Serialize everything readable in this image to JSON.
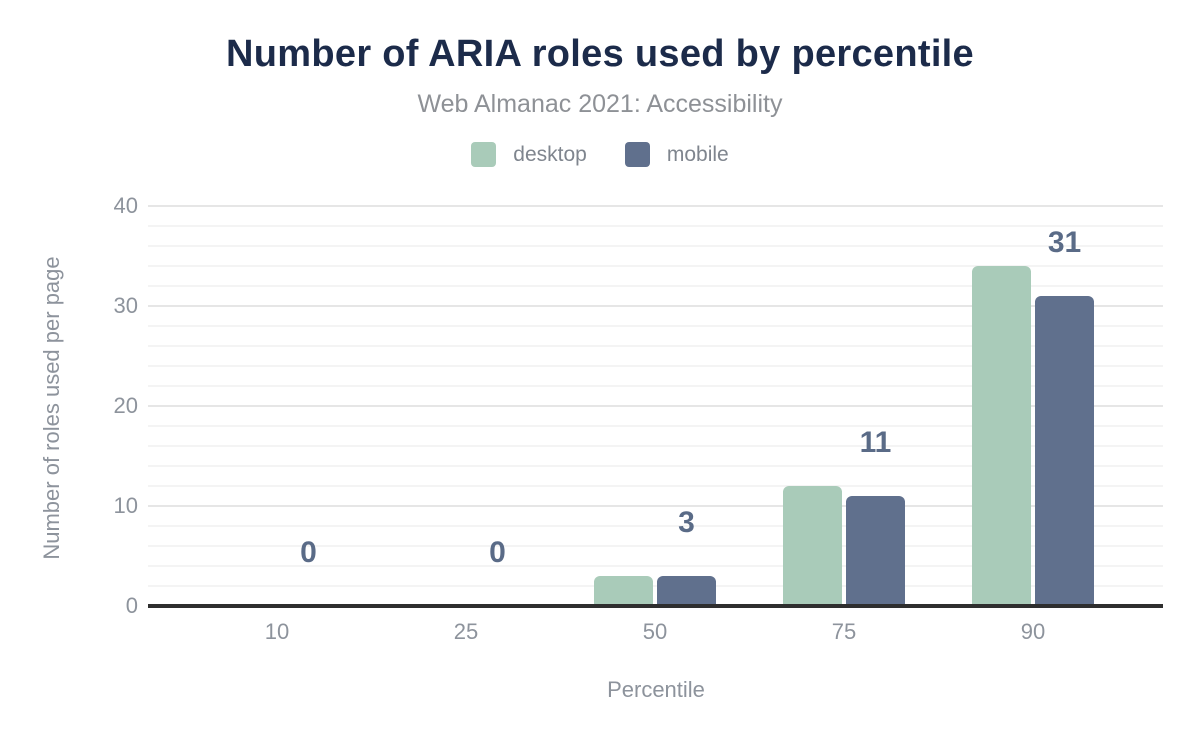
{
  "chart_data": {
    "type": "bar",
    "title": "Number of ARIA roles used by percentile",
    "subtitle": "Web Almanac 2021: Accessibility",
    "categories": [
      "10",
      "25",
      "50",
      "75",
      "90"
    ],
    "series": [
      {
        "name": "desktop",
        "color": "#a9cbb9",
        "values": [
          0,
          0,
          3,
          12,
          34
        ]
      },
      {
        "name": "mobile",
        "color": "#60708d",
        "values": [
          0,
          0,
          3,
          11,
          31
        ]
      }
    ],
    "data_labels": {
      "series": "mobile",
      "values": [
        "0",
        "0",
        "3",
        "11",
        "31"
      ]
    },
    "xlabel": "Percentile",
    "ylabel": "Number of roles used per page",
    "ylim": [
      0,
      40
    ],
    "yticks": [
      0,
      10,
      20,
      30,
      40
    ],
    "minor_gridline_step": 2,
    "grid": true,
    "legend_position": "top"
  },
  "colors": {
    "background": "#ffffff",
    "title": "#1c2b4a",
    "subtitle": "#8e9196",
    "axis_text": "#8d939c",
    "legend_text": "#7f858e",
    "data_label": "#5a6b87",
    "axis_line": "#2e2e2e",
    "major_gridline": "#e6e6e6",
    "minor_gridline": "#f4f4f4",
    "desktop": "#a9cbb9",
    "mobile": "#60708d"
  }
}
